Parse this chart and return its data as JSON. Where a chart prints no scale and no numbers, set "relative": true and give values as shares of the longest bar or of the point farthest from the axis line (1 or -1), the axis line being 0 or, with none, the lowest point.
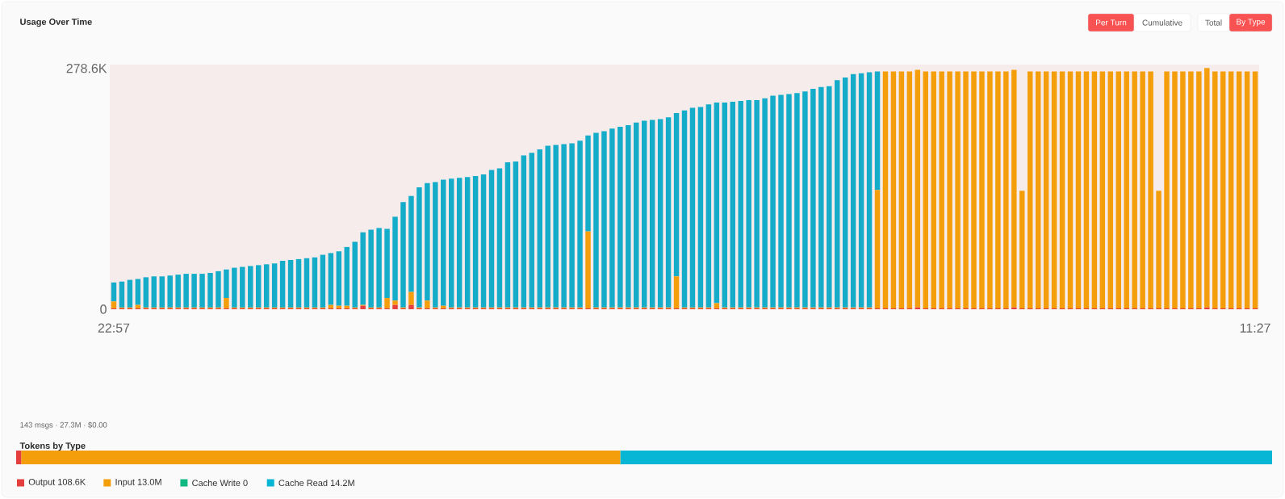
{
  "chart_data": [
    {
      "type": "bar",
      "title": "Usage Over Time",
      "stacked": true,
      "annotations": [
        "Per Turn",
        "Cumulative",
        "Total",
        "By Type"
      ],
      "categories": [
        "22:57",
        null,
        null,
        null,
        null,
        null,
        null,
        null,
        null,
        null,
        null,
        null,
        null,
        null,
        null,
        null,
        null,
        null,
        null,
        null,
        null,
        null,
        null,
        null,
        null,
        null,
        null,
        null,
        null,
        null,
        null,
        null,
        null,
        null,
        null,
        null,
        null,
        null,
        null,
        null,
        null,
        null,
        null,
        null,
        null,
        null,
        null,
        null,
        null,
        null,
        null,
        null,
        null,
        null,
        null,
        null,
        null,
        null,
        null,
        null,
        null,
        null,
        null,
        null,
        null,
        null,
        null,
        null,
        null,
        null,
        null,
        null,
        null,
        null,
        null,
        null,
        null,
        null,
        null,
        null,
        null,
        null,
        null,
        null,
        null,
        null,
        null,
        null,
        null,
        null,
        null,
        null,
        null,
        null,
        null,
        null,
        null,
        null,
        null,
        null,
        null,
        null,
        null,
        null,
        null,
        null,
        null,
        null,
        null,
        null,
        null,
        null,
        null,
        null,
        null,
        null,
        null,
        null,
        null,
        null,
        null,
        null,
        null,
        null,
        null,
        null,
        null,
        null,
        null,
        null,
        null,
        null,
        null,
        null,
        null,
        null,
        null,
        null,
        null,
        null,
        null,
        null,
        "11:27"
      ],
      "ylim": [
        0,
        283
      ],
      "yticks": [
        0,
        {
          "value": 278.6,
          "label": "278.6K"
        }
      ],
      "series": [
        {
          "color": "#e53e3e",
          "values": [
            1,
            1,
            1,
            1,
            1,
            1,
            1,
            1,
            1,
            1,
            1,
            1,
            1,
            1,
            1,
            1,
            1,
            1,
            1,
            1,
            1,
            1,
            1,
            1,
            1,
            1,
            1,
            1,
            1,
            1,
            1,
            4,
            1,
            1,
            1,
            5,
            1,
            5,
            1,
            1,
            1,
            1,
            1,
            1,
            1,
            1,
            1,
            1,
            1,
            1,
            1,
            1,
            1,
            1,
            1,
            1,
            1,
            1,
            1,
            1,
            1,
            1,
            1,
            1,
            1,
            1,
            1,
            1,
            1,
            1,
            1,
            1,
            1,
            1,
            1,
            1,
            1,
            1,
            1,
            1,
            1,
            1,
            1,
            1,
            1,
            1,
            1,
            1,
            1,
            1,
            1,
            1,
            1,
            1,
            1,
            1,
            1,
            1,
            1,
            1,
            2,
            1,
            1,
            1,
            1,
            1,
            1,
            1,
            1,
            1,
            1,
            1,
            2,
            1,
            1,
            1,
            1,
            1,
            1,
            1,
            1,
            1,
            1,
            1,
            1,
            1,
            1,
            1,
            1,
            1,
            1,
            1,
            1,
            1,
            1,
            1,
            2,
            1,
            1,
            1,
            1,
            1,
            1
          ]
        },
        {
          "color": "#f59e0b",
          "values": [
            8,
            1,
            1,
            4,
            1,
            1,
            1,
            1,
            1,
            1,
            1,
            1,
            1,
            1,
            12,
            1,
            1,
            1,
            1,
            1,
            1,
            1,
            1,
            1,
            1,
            1,
            1,
            4,
            3,
            3,
            1,
            1,
            1,
            1,
            12,
            5,
            1,
            15,
            1,
            9,
            1,
            3,
            1,
            1,
            1,
            1,
            1,
            1,
            1,
            1,
            1,
            1,
            1,
            1,
            1,
            1,
            1,
            1,
            1,
            89,
            1,
            1,
            1,
            1,
            1,
            1,
            1,
            1,
            1,
            1,
            37,
            1,
            1,
            1,
            1,
            6,
            1,
            1,
            1,
            1,
            1,
            1,
            1,
            1,
            1,
            1,
            1,
            1,
            1,
            1,
            1,
            1,
            1,
            1,
            1,
            137,
            274,
            274,
            274,
            274,
            275,
            274,
            274,
            274,
            274,
            274,
            274,
            274,
            274,
            274,
            274,
            274,
            275,
            136,
            274,
            274,
            274,
            274,
            274,
            274,
            274,
            274,
            274,
            274,
            274,
            274,
            274,
            274,
            274,
            274,
            136,
            274,
            274,
            274,
            274,
            274,
            277,
            274,
            274,
            274,
            274,
            274,
            274
          ]
        },
        {
          "color": "#14acc8",
          "values": [
            22,
            30,
            32,
            30,
            35,
            36,
            36,
            37,
            38,
            39,
            39,
            39,
            40,
            42,
            33,
            46,
            47,
            48,
            49,
            50,
            51,
            54,
            55,
            56,
            57,
            58,
            61,
            60,
            63,
            68,
            76,
            84,
            90,
            92,
            80,
            97,
            122,
            111,
            139,
            136,
            145,
            146,
            149,
            150,
            151,
            152,
            154,
            159,
            161,
            168,
            169,
            176,
            179,
            183,
            187,
            188,
            189,
            190,
            193,
            111,
            202,
            204,
            207,
            209,
            211,
            214,
            216,
            217,
            218,
            220,
            189,
            228,
            231,
            232,
            235,
            232,
            237,
            238,
            239,
            240,
            240,
            242,
            245,
            246,
            247,
            248,
            250,
            253,
            255,
            256,
            263,
            266,
            270,
            271,
            272,
            137,
            0,
            0,
            0,
            0,
            0,
            0,
            0,
            0,
            0,
            0,
            0,
            0,
            0,
            0,
            0,
            0,
            0,
            0,
            0,
            0,
            0,
            0,
            0,
            0,
            0,
            0,
            0,
            0,
            0,
            0,
            0,
            0,
            0,
            0,
            0,
            0,
            0,
            0,
            0,
            0,
            0,
            0,
            0,
            0,
            0,
            0,
            0
          ]
        }
      ]
    },
    {
      "type": "bar",
      "title": "Tokens by Type",
      "orientation": "horizontal",
      "stacked": true,
      "relative": true,
      "legend": "bottom",
      "annotations": [
        "143 msgs · 27.3M · $0.00"
      ],
      "categories": [
        null
      ],
      "series": [
        {
          "name": "Output 108.6K",
          "color": "#e53e3e",
          "values": [
            0.004
          ]
        },
        {
          "name": "Input 13.0M",
          "color": "#f59e0b",
          "values": [
            0.477
          ]
        },
        {
          "name": "Cache Write 0",
          "color": "#10b981",
          "values": [
            0
          ]
        },
        {
          "name": "Cache Read 14.2M",
          "color": "#06b6d4",
          "values": [
            0.519
          ]
        }
      ]
    }
  ]
}
